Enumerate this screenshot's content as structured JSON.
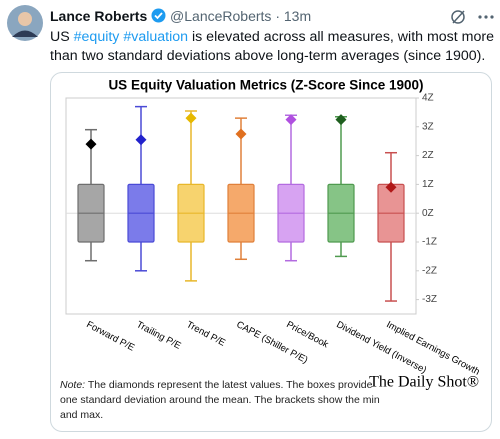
{
  "tweet": {
    "name": "Lance Roberts",
    "handle": "@LanceRoberts",
    "time": "13m",
    "separator": "·",
    "text": [
      "US ",
      "#equity",
      " ",
      "#valuation",
      " is elevated across all measures, with most more than two standard deviations above long-term averages (since 1900)."
    ]
  },
  "chart_data": {
    "type": "box",
    "title": "US Equity Valuation Metrics (Z-Score Since 1900)",
    "categories": [
      "Forward P/E",
      "Trailing P/E",
      "Trend P/E",
      "CAPE (Shiller P/E)",
      "Price/Book",
      "Dividend Yield (Inverse)",
      "Implied Earnings Growth"
    ],
    "box_low": [
      -1,
      -1,
      -1,
      -1,
      -1,
      -1,
      -1
    ],
    "box_high": [
      1,
      1,
      1,
      1,
      1,
      1,
      1
    ],
    "mean": [
      0,
      0,
      0,
      0,
      0,
      0,
      0
    ],
    "min": [
      -1.65,
      -2.0,
      -2.35,
      -1.6,
      -1.65,
      -1.5,
      -3.05
    ],
    "max": [
      2.9,
      3.7,
      3.55,
      3.3,
      3.4,
      3.35,
      2.1
    ],
    "latest": [
      2.4,
      2.55,
      3.3,
      2.75,
      3.25,
      3.25,
      0.9
    ],
    "colors": [
      "#a6a6a6",
      "#7b7bea",
      "#f7d36e",
      "#f5a96b",
      "#d7a3f2",
      "#86c486",
      "#e89494"
    ],
    "edge_colors": [
      "#6e6e6e",
      "#4a4ad6",
      "#e8b72a",
      "#e0803a",
      "#b36be0",
      "#4f9a4f",
      "#c85050"
    ],
    "marker_colors": [
      "#000000",
      "#2222cc",
      "#e6b800",
      "#e07020",
      "#b050e0",
      "#1f5f1f",
      "#b01818"
    ],
    "ylim": [
      -3.5,
      4
    ],
    "yticks": [
      {
        "value": -3,
        "label": "-3Z"
      },
      {
        "value": -2,
        "label": "-2Z"
      },
      {
        "value": -1,
        "label": "-1Z"
      },
      {
        "value": 0,
        "label": "0Z"
      },
      {
        "value": 1,
        "label": "1Z"
      },
      {
        "value": 2,
        "label": "2Z"
      },
      {
        "value": 3,
        "label": "3Z"
      },
      {
        "value": 4,
        "label": "4Z"
      }
    ],
    "zero_line": true,
    "note": {
      "label": "Note:",
      "text": "The diamonds represent the latest values. The boxes provide one standard deviation around the mean. The brackets show the min and max."
    },
    "source": "The Daily Shot®"
  }
}
